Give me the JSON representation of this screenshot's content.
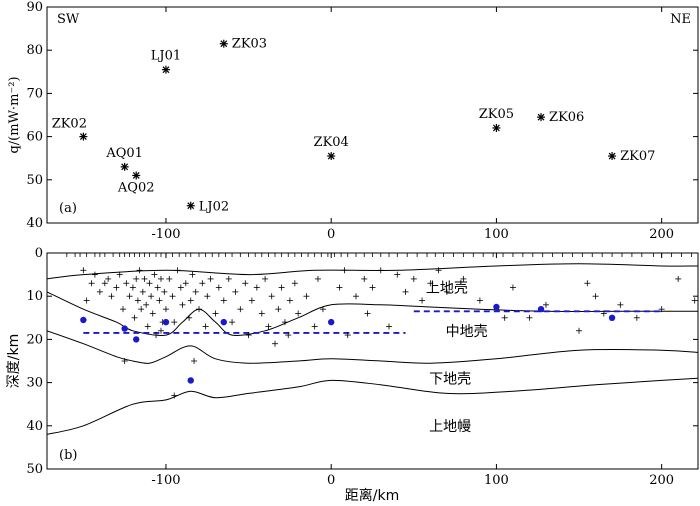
{
  "chart_data": [
    {
      "panel": "(a)",
      "type": "scatter",
      "ylabel": "q/(mW·m⁻²)",
      "xlim": [
        -172,
        222
      ],
      "ylim": [
        40,
        90
      ],
      "xticks": [
        -100,
        0,
        100,
        200
      ],
      "xtick_labels": [
        "-100",
        "0",
        "100",
        "200"
      ],
      "yticks": [
        40,
        50,
        60,
        70,
        80,
        90
      ],
      "ytick_labels": [
        "40",
        "50",
        "60",
        "70",
        "80",
        "90"
      ],
      "corner_labels": [
        "SW",
        "NE"
      ],
      "marker": "*",
      "points": [
        {
          "label": "ZK02",
          "x": -150,
          "y": 60
        },
        {
          "label": "AQ01",
          "x": -125,
          "y": 53
        },
        {
          "label": "AQ02",
          "x": -118,
          "y": 51
        },
        {
          "label": "LJ01",
          "x": -100,
          "y": 75.5
        },
        {
          "label": "LJ02",
          "x": -85,
          "y": 44
        },
        {
          "label": "ZK03",
          "x": -65,
          "y": 81.5
        },
        {
          "label": "ZK04",
          "x": 0,
          "y": 55.5
        },
        {
          "label": "ZK05",
          "x": 100,
          "y": 62
        },
        {
          "label": "ZK06",
          "x": 127,
          "y": 64.5
        },
        {
          "label": "ZK07",
          "x": 170,
          "y": 55.5
        }
      ]
    },
    {
      "panel": "(b)",
      "type": "scatter",
      "xlabel": "距离/km",
      "ylabel": "深度/km",
      "xlim": [
        -172,
        222
      ],
      "ylim": [
        50,
        0
      ],
      "xticks": [
        -100,
        0,
        100,
        200
      ],
      "xtick_labels": [
        "-100",
        "0",
        "100",
        "200"
      ],
      "yticks": [
        0,
        10,
        20,
        30,
        40,
        50
      ],
      "ytick_labels": [
        "0",
        "10",
        "20",
        "30",
        "40",
        "50"
      ],
      "layer_labels": [
        {
          "text": "上地壳",
          "x": 70,
          "y": 8
        },
        {
          "text": "中地壳",
          "x": 82,
          "y": 18
        },
        {
          "text": "下地壳",
          "x": 72,
          "y": 29
        },
        {
          "text": "上地幔",
          "x": 72,
          "y": 40
        }
      ],
      "boundaries": [
        [
          [
            -172,
            6
          ],
          [
            -150,
            5
          ],
          [
            -100,
            4
          ],
          [
            -50,
            5
          ],
          [
            -10,
            4
          ],
          [
            40,
            4
          ],
          [
            100,
            3
          ],
          [
            150,
            2.5
          ],
          [
            200,
            3
          ],
          [
            222,
            3
          ]
        ],
        [
          [
            -172,
            9
          ],
          [
            -150,
            13
          ],
          [
            -130,
            16
          ],
          [
            -120,
            18
          ],
          [
            -100,
            19
          ],
          [
            -90,
            16
          ],
          [
            -80,
            13
          ],
          [
            -70,
            16
          ],
          [
            -60,
            19
          ],
          [
            -40,
            18
          ],
          [
            -20,
            15
          ],
          [
            0,
            12
          ],
          [
            30,
            12
          ],
          [
            60,
            12.5
          ],
          [
            90,
            13
          ],
          [
            130,
            13.5
          ],
          [
            180,
            13.5
          ],
          [
            222,
            13.5
          ]
        ],
        [
          [
            -172,
            18
          ],
          [
            -150,
            21
          ],
          [
            -130,
            24
          ],
          [
            -120,
            25
          ],
          [
            -110,
            25.5
          ],
          [
            -100,
            24
          ],
          [
            -85,
            21.5
          ],
          [
            -70,
            24.5
          ],
          [
            -50,
            25.5
          ],
          [
            -20,
            25
          ],
          [
            0,
            24.5
          ],
          [
            30,
            25
          ],
          [
            60,
            25.5
          ],
          [
            100,
            24.5
          ],
          [
            150,
            22.5
          ],
          [
            200,
            22.5
          ],
          [
            222,
            23
          ]
        ],
        [
          [
            -172,
            42
          ],
          [
            -150,
            40
          ],
          [
            -120,
            35
          ],
          [
            -100,
            34
          ],
          [
            -85,
            32
          ],
          [
            -70,
            33.5
          ],
          [
            -50,
            32.5
          ],
          [
            -20,
            31
          ],
          [
            0,
            29.5
          ],
          [
            30,
            30.5
          ],
          [
            70,
            32.5
          ],
          [
            110,
            32
          ],
          [
            160,
            30.5
          ],
          [
            200,
            29.5
          ],
          [
            222,
            29
          ]
        ]
      ],
      "dashed_lines": [
        {
          "color": "#1a1acc",
          "x": [
            -150,
            45
          ],
          "y": 18.5
        },
        {
          "color": "#1a1acc",
          "x": [
            50,
            200
          ],
          "y": 13.5
        }
      ],
      "blue_points": [
        {
          "x": -150,
          "y": 15.5
        },
        {
          "x": -125,
          "y": 17.5
        },
        {
          "x": -118,
          "y": 20
        },
        {
          "x": -100,
          "y": 16
        },
        {
          "x": -85,
          "y": 29.5
        },
        {
          "x": -65,
          "y": 16
        },
        {
          "x": 0,
          "y": 16
        },
        {
          "x": 100,
          "y": 12.5
        },
        {
          "x": 127,
          "y": 13
        },
        {
          "x": 170,
          "y": 15
        }
      ],
      "seismic_events": [
        [
          -150,
          4
        ],
        [
          -148,
          11
        ],
        [
          -145,
          7
        ],
        [
          -143,
          5
        ],
        [
          -140,
          9
        ],
        [
          -137,
          7
        ],
        [
          -135,
          6
        ],
        [
          -133,
          10
        ],
        [
          -130,
          8
        ],
        [
          -128,
          5
        ],
        [
          -126,
          13
        ],
        [
          -124,
          7
        ],
        [
          -122,
          10
        ],
        [
          -120,
          8
        ],
        [
          -119,
          15
        ],
        [
          -118,
          6
        ],
        [
          -117,
          11
        ],
        [
          -116,
          4
        ],
        [
          -115,
          13
        ],
        [
          -114,
          9
        ],
        [
          -113,
          6
        ],
        [
          -112,
          12
        ],
        [
          -111,
          17
        ],
        [
          -110,
          7
        ],
        [
          -109,
          10
        ],
        [
          -108,
          14
        ],
        [
          -107,
          5
        ],
        [
          -106,
          19
        ],
        [
          -105,
          8
        ],
        [
          -104,
          11
        ],
        [
          -103,
          6
        ],
        [
          -102,
          16
        ],
        [
          -101,
          9
        ],
        [
          -100,
          13
        ],
        [
          -98,
          6
        ],
        [
          -96,
          10
        ],
        [
          -95,
          16
        ],
        [
          -93,
          4
        ],
        [
          -91,
          8
        ],
        [
          -90,
          12
        ],
        [
          -88,
          7
        ],
        [
          -86,
          15
        ],
        [
          -85,
          11
        ],
        [
          -84,
          5
        ],
        [
          -82,
          9
        ],
        [
          -80,
          13
        ],
        [
          -78,
          7
        ],
        [
          -76,
          17
        ],
        [
          -75,
          10
        ],
        [
          -73,
          6
        ],
        [
          -70,
          14
        ],
        [
          -68,
          8
        ],
        [
          -65,
          11
        ],
        [
          -62,
          6
        ],
        [
          -60,
          16
        ],
        [
          -58,
          9
        ],
        [
          -55,
          13
        ],
        [
          -52,
          7
        ],
        [
          -50,
          19
        ],
        [
          -48,
          11
        ],
        [
          -45,
          8
        ],
        [
          -42,
          14
        ],
        [
          -40,
          6
        ],
        [
          -38,
          17
        ],
        [
          -36,
          10
        ],
        [
          -34,
          21
        ],
        [
          -32,
          13
        ],
        [
          -30,
          8
        ],
        [
          -28,
          16
        ],
        [
          -26,
          19
        ],
        [
          -25,
          11
        ],
        [
          -22,
          7
        ],
        [
          -20,
          14
        ],
        [
          -15,
          10
        ],
        [
          -10,
          17
        ],
        [
          -8,
          6
        ],
        [
          -5,
          13
        ],
        [
          5,
          8
        ],
        [
          8,
          4
        ],
        [
          10,
          19
        ],
        [
          15,
          10
        ],
        [
          20,
          6
        ],
        [
          22,
          14
        ],
        [
          25,
          8
        ],
        [
          30,
          4
        ],
        [
          35,
          17
        ],
        [
          40,
          5
        ],
        [
          45,
          9
        ],
        [
          50,
          6
        ],
        [
          55,
          11
        ],
        [
          60,
          7
        ],
        [
          65,
          4
        ],
        [
          70,
          9
        ],
        [
          80,
          6
        ],
        [
          90,
          11
        ],
        [
          105,
          15
        ],
        [
          110,
          8
        ],
        [
          120,
          15
        ],
        [
          130,
          12
        ],
        [
          150,
          18
        ],
        [
          155,
          7
        ],
        [
          160,
          10
        ],
        [
          165,
          14
        ],
        [
          175,
          12
        ],
        [
          185,
          15
        ],
        [
          200,
          13
        ],
        [
          210,
          6
        ],
        [
          220,
          11
        ],
        [
          -125,
          25
        ],
        [
          -103,
          18
        ],
        [
          -83,
          25
        ],
        [
          -95,
          33
        ]
      ],
      "surface_stations": [
        -160,
        -155,
        -152,
        -148,
        -143,
        -140,
        -137,
        -132,
        -128,
        -125,
        -122,
        -119,
        -116,
        -113,
        -110,
        -106,
        -103,
        -100,
        -96,
        -92,
        -88,
        -85,
        -80,
        -76,
        -72,
        -68,
        -64,
        -60,
        -55,
        -50,
        -46,
        -42,
        -38,
        -34,
        -30,
        -26,
        -22,
        -18,
        -14,
        -10,
        -6,
        -2,
        2,
        6,
        10,
        15,
        20,
        25,
        30,
        35,
        40,
        46,
        52,
        58,
        63,
        68,
        74,
        80,
        86,
        92,
        98,
        104,
        110,
        116,
        122,
        128,
        134,
        140,
        146,
        152,
        158,
        164,
        170,
        176,
        182,
        188,
        195,
        200,
        206,
        212,
        218
      ]
    }
  ]
}
